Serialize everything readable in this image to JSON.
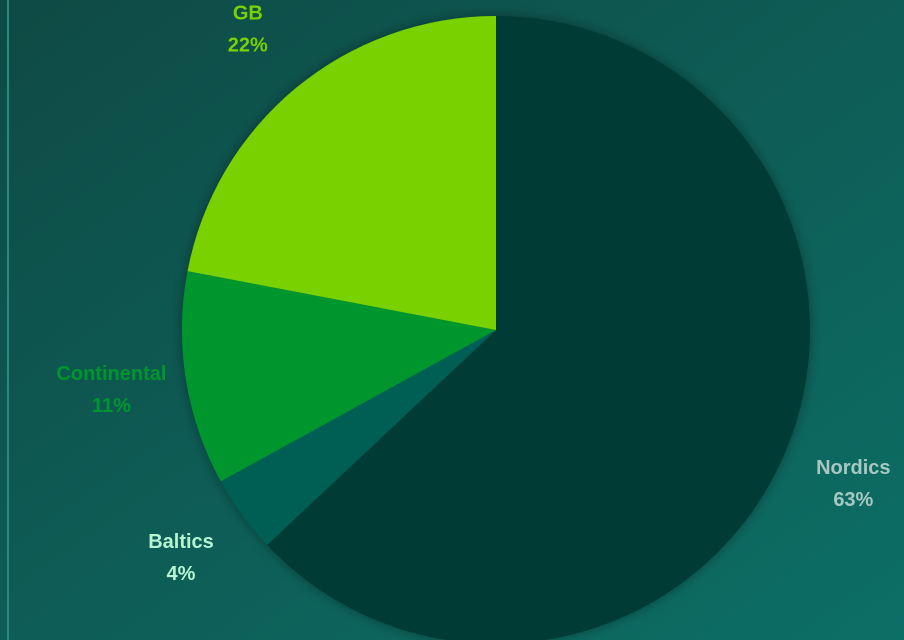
{
  "chart_data": {
    "type": "pie",
    "categories": [
      "Nordics",
      "Baltics",
      "Continental",
      "GB"
    ],
    "values": [
      63,
      4,
      11,
      22
    ],
    "value_labels": [
      "63%",
      "4%",
      "11%",
      "22%"
    ],
    "colors": [
      "#003b35",
      "#005e55",
      "#00962e",
      "#7ad100"
    ],
    "label_colors": [
      "#a7c8c2",
      "#b5f5d2",
      "#00962e",
      "#7ad100"
    ],
    "start_angle": 0,
    "direction": "clockwise"
  }
}
